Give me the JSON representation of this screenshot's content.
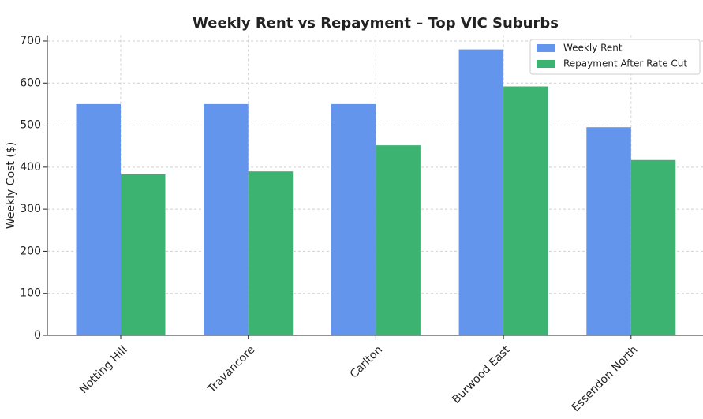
{
  "chart_data": {
    "type": "bar",
    "title": "Weekly Rent vs Repayment – Top VIC Suburbs",
    "y_label": "Weekly Cost ($)",
    "categories": [
      "Notting Hill",
      "Travancore",
      "Carlton",
      "Burwood East",
      "Essendon North"
    ],
    "series": [
      {
        "name": "Weekly Rent",
        "color": "#6495ed",
        "values": [
          550,
          550,
          550,
          680,
          495
        ]
      },
      {
        "name": "Repayment After Rate Cut",
        "color": "#3cb371",
        "values": [
          383,
          390,
          452,
          592,
          417
        ]
      }
    ],
    "ylim": [
      0,
      714
    ],
    "yticks": [
      0,
      100,
      200,
      300,
      400,
      500,
      600,
      700
    ],
    "grid": true,
    "legend": "upper-right"
  }
}
